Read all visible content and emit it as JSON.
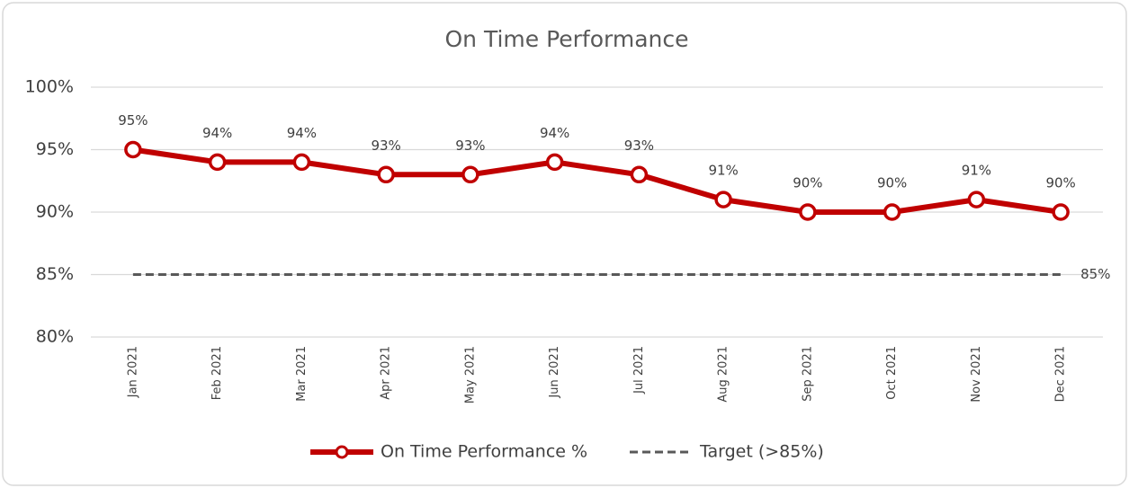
{
  "chart_data": {
    "type": "line",
    "title": "On Time Performance",
    "categories": [
      "Jan 2021",
      "Feb 2021",
      "Mar 2021",
      "Apr 2021",
      "May 2021",
      "Jun 2021",
      "Jul 2021",
      "Aug 2021",
      "Sep 2021",
      "Oct 2021",
      "Nov 2021",
      "Dec 2021"
    ],
    "series": [
      {
        "name": "On Time Performance %",
        "color": "#c00000",
        "style": "solid",
        "markers": true,
        "values": [
          95,
          94,
          94,
          93,
          93,
          94,
          93,
          91,
          90,
          90,
          91,
          90
        ],
        "value_labels": [
          "95%",
          "94%",
          "94%",
          "93%",
          "93%",
          "94%",
          "93%",
          "91%",
          "90%",
          "90%",
          "91%",
          "90%"
        ]
      },
      {
        "name": "Target (>85%)",
        "color": "#595959",
        "style": "dashed",
        "markers": false,
        "values": [
          85,
          85,
          85,
          85,
          85,
          85,
          85,
          85,
          85,
          85,
          85,
          85
        ],
        "value_labels": [
          null,
          null,
          null,
          null,
          null,
          null,
          null,
          null,
          null,
          null,
          null,
          "85%"
        ]
      }
    ],
    "ylim": [
      80,
      100
    ],
    "yticks": [
      {
        "value": 80,
        "label": "80%"
      },
      {
        "value": 85,
        "label": "85%"
      },
      {
        "value": 90,
        "label": "90%"
      },
      {
        "value": 95,
        "label": "95%"
      },
      {
        "value": 100,
        "label": "100%"
      }
    ],
    "grid": true,
    "legend": "bottom"
  }
}
